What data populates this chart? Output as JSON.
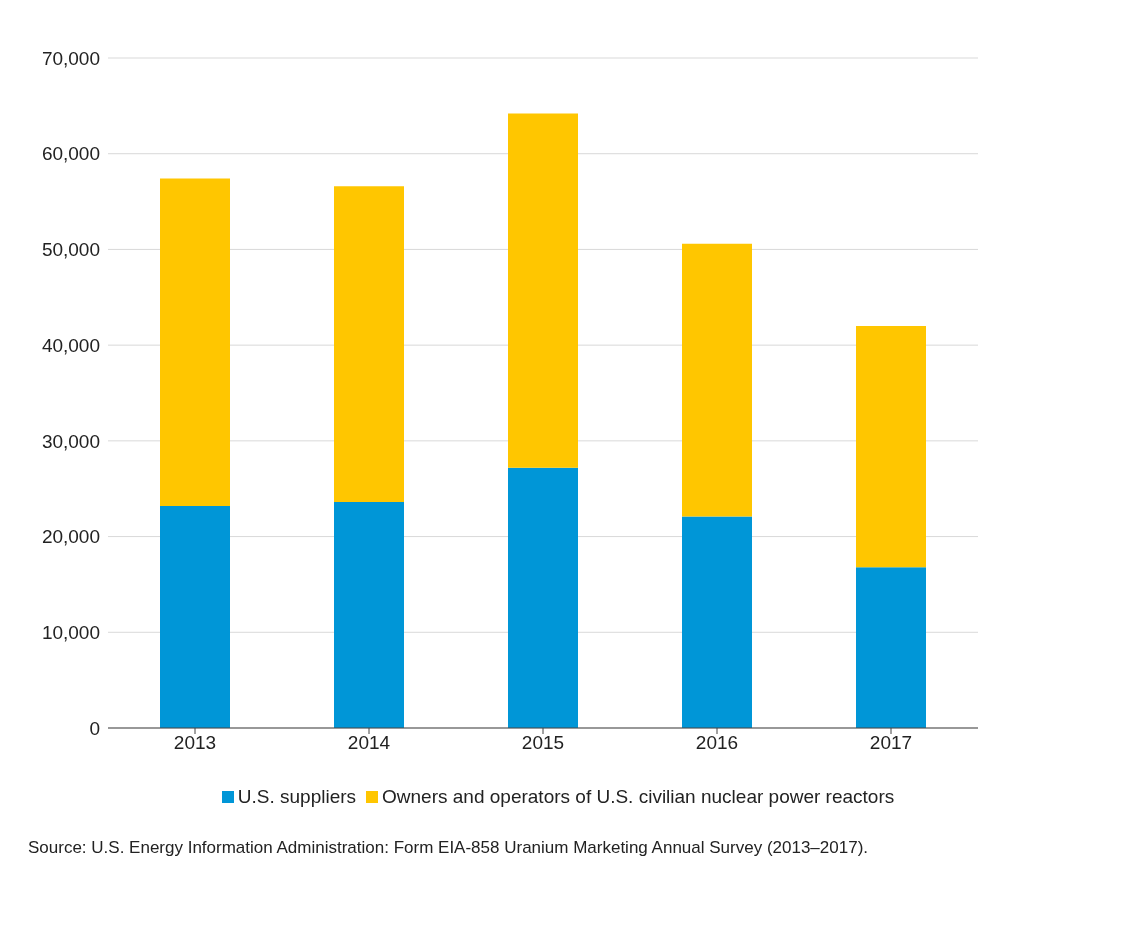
{
  "chart_data": {
    "type": "bar",
    "stacked": true,
    "categories": [
      "2013",
      "2014",
      "2015",
      "2016",
      "2017"
    ],
    "series": [
      {
        "name": "U.S. suppliers",
        "color": "#0096d7",
        "values": [
          23200,
          23600,
          27200,
          22100,
          16800
        ]
      },
      {
        "name": "Owners and operators of U.S. civilian nuclear power reactors",
        "color": "#ffc600",
        "values": [
          34200,
          33000,
          37000,
          28500,
          25200
        ]
      }
    ],
    "ylim": [
      0,
      70000
    ],
    "yticks": [
      0,
      {
        "value": 10000,
        "label": "10,000"
      },
      {
        "value": 20000,
        "label": "20,000"
      },
      {
        "value": 30000,
        "label": "30,000"
      },
      {
        "value": 40000,
        "label": "40,000"
      },
      {
        "value": 50000,
        "label": "50,000"
      },
      {
        "value": 60000,
        "label": "60,000"
      },
      {
        "value": 70000,
        "label": "70,000"
      }
    ],
    "grid": "y",
    "legend": "bottom",
    "annotations": [
      "Source: U.S. Energy Information Administration: Form EIA-858 Uranium Marketing Annual Survey (2013–2017)."
    ]
  }
}
